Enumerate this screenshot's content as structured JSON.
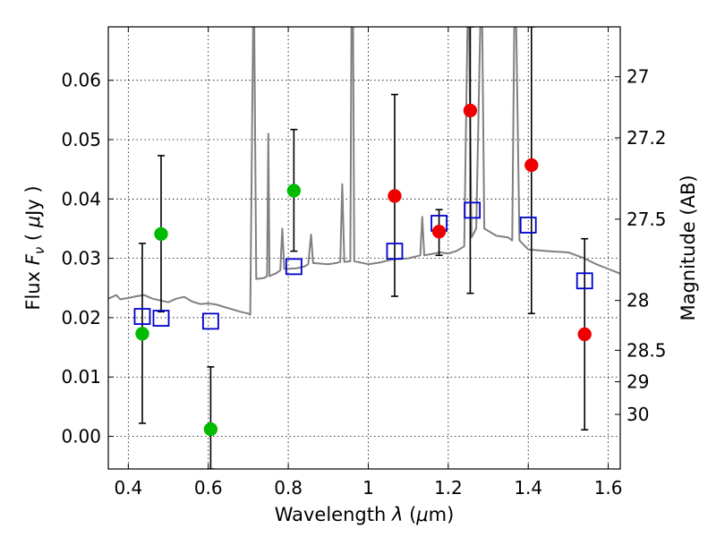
{
  "chart_data": {
    "type": "scatter",
    "title": "",
    "xlabel_prefix": "Wavelength ",
    "xlabel_symbol": "λ",
    "xlabel_unit_open": " (",
    "xlabel_unit_mu": "μ",
    "xlabel_unit_close": "m)",
    "ylabel_prefix": "Flux ",
    "ylabel_symbol": "F",
    "ylabel_sub": "ν",
    "ylabel_unit_open": " ( ",
    "ylabel_unit_mu": "μ",
    "ylabel_unit_close": "Jy )",
    "y2label": "Magnitude (AB)",
    "xlim": [
      0.35,
      1.63
    ],
    "ylim": [
      -0.0055,
      0.069
    ],
    "grid": true,
    "xticks": [
      {
        "v": 0.4,
        "label": "0.4"
      },
      {
        "v": 0.6,
        "label": "0.6"
      },
      {
        "v": 0.8,
        "label": "0.8"
      },
      {
        "v": 1.0,
        "label": "1"
      },
      {
        "v": 1.2,
        "label": "1.2"
      },
      {
        "v": 1.4,
        "label": "1.4"
      },
      {
        "v": 1.6,
        "label": "1.6"
      }
    ],
    "yticks": [
      {
        "v": 0.0,
        "label": "0.00"
      },
      {
        "v": 0.01,
        "label": "0.01"
      },
      {
        "v": 0.02,
        "label": "0.02"
      },
      {
        "v": 0.03,
        "label": "0.03"
      },
      {
        "v": 0.04,
        "label": "0.04"
      },
      {
        "v": 0.05,
        "label": "0.05"
      },
      {
        "v": 0.06,
        "label": "0.06"
      }
    ],
    "y2ticks": [
      {
        "flux": 0.0606,
        "label": "27"
      },
      {
        "flux": 0.0503,
        "label": "27.2"
      },
      {
        "flux": 0.0366,
        "label": "27.5"
      },
      {
        "flux": 0.0229,
        "label": "28"
      },
      {
        "flux": 0.0145,
        "label": "28.5"
      },
      {
        "flux": 0.0092,
        "label": "29"
      },
      {
        "flux": 0.0037,
        "label": "30"
      }
    ],
    "colors": {
      "green": "#00bb00",
      "red": "#ee0000",
      "model": "#808080",
      "box": "#0000cc",
      "error": "#000000"
    },
    "series": [
      {
        "name": "green points",
        "color": "#00bb00",
        "points": [
          {
            "x": 0.435,
            "y": 0.0173,
            "lo": 0.0022,
            "hi": 0.0325
          },
          {
            "x": 0.482,
            "y": 0.0341,
            "lo": 0.021,
            "hi": 0.0473
          },
          {
            "x": 0.606,
            "y": 0.0012,
            "lo": -0.0055,
            "hi": 0.0117
          },
          {
            "x": 0.814,
            "y": 0.0414,
            "lo": 0.0312,
            "hi": 0.0517
          }
        ]
      },
      {
        "name": "red points",
        "color": "#ee0000",
        "points": [
          {
            "x": 1.066,
            "y": 0.0405,
            "lo": 0.0236,
            "hi": 0.0576
          },
          {
            "x": 1.177,
            "y": 0.0345,
            "lo": 0.0305,
            "hi": 0.0382
          },
          {
            "x": 1.255,
            "y": 0.0549,
            "lo": 0.0241,
            "hi": 0.069
          },
          {
            "x": 1.408,
            "y": 0.0457,
            "lo": 0.0207,
            "hi": 0.069
          },
          {
            "x": 1.541,
            "y": 0.0172,
            "lo": 0.0011,
            "hi": 0.0333
          }
        ]
      },
      {
        "name": "model photometry",
        "color": "#0000cc",
        "marker": "open-square",
        "points": [
          {
            "x": 0.435,
            "y": 0.0202
          },
          {
            "x": 0.482,
            "y": 0.0199
          },
          {
            "x": 0.606,
            "y": 0.0194
          },
          {
            "x": 0.814,
            "y": 0.0286
          },
          {
            "x": 1.066,
            "y": 0.0312
          },
          {
            "x": 1.177,
            "y": 0.0359
          },
          {
            "x": 1.26,
            "y": 0.0381
          },
          {
            "x": 1.4,
            "y": 0.0356
          },
          {
            "x": 1.541,
            "y": 0.0262
          }
        ]
      },
      {
        "name": "model spectrum",
        "color": "#808080",
        "type": "line",
        "points": [
          [
            0.35,
            0.0232
          ],
          [
            0.36,
            0.0235
          ],
          [
            0.37,
            0.0238
          ],
          [
            0.38,
            0.0231
          ],
          [
            0.4,
            0.0233
          ],
          [
            0.42,
            0.0236
          ],
          [
            0.44,
            0.0238
          ],
          [
            0.46,
            0.0232
          ],
          [
            0.48,
            0.0229
          ],
          [
            0.5,
            0.0226
          ],
          [
            0.52,
            0.0232
          ],
          [
            0.54,
            0.0235
          ],
          [
            0.56,
            0.0227
          ],
          [
            0.58,
            0.0223
          ],
          [
            0.6,
            0.0224
          ],
          [
            0.62,
            0.0222
          ],
          [
            0.64,
            0.0218
          ],
          [
            0.66,
            0.0214
          ],
          [
            0.68,
            0.021
          ],
          [
            0.7,
            0.0207
          ],
          [
            0.705,
            0.0205
          ],
          [
            0.712,
            0.069
          ],
          [
            0.715,
            0.069
          ],
          [
            0.72,
            0.0265
          ],
          [
            0.74,
            0.0267
          ],
          [
            0.747,
            0.027
          ],
          [
            0.75,
            0.051
          ],
          [
            0.753,
            0.027
          ],
          [
            0.77,
            0.0275
          ],
          [
            0.78,
            0.028
          ],
          [
            0.785,
            0.035
          ],
          [
            0.79,
            0.0282
          ],
          [
            0.82,
            0.0283
          ],
          [
            0.84,
            0.0286
          ],
          [
            0.85,
            0.029
          ],
          [
            0.857,
            0.034
          ],
          [
            0.862,
            0.0292
          ],
          [
            0.9,
            0.029
          ],
          [
            0.92,
            0.0292
          ],
          [
            0.93,
            0.0294
          ],
          [
            0.935,
            0.0425
          ],
          [
            0.94,
            0.0294
          ],
          [
            0.955,
            0.0295
          ],
          [
            0.958,
            0.069
          ],
          [
            0.962,
            0.069
          ],
          [
            0.965,
            0.0295
          ],
          [
            1.0,
            0.029
          ],
          [
            1.03,
            0.0293
          ],
          [
            1.06,
            0.0298
          ],
          [
            1.1,
            0.03
          ],
          [
            1.13,
            0.0305
          ],
          [
            1.135,
            0.037
          ],
          [
            1.14,
            0.0305
          ],
          [
            1.18,
            0.031
          ],
          [
            1.2,
            0.0308
          ],
          [
            1.22,
            0.0312
          ],
          [
            1.24,
            0.032
          ],
          [
            1.248,
            0.069
          ],
          [
            1.252,
            0.069
          ],
          [
            1.258,
            0.0335
          ],
          [
            1.27,
            0.035
          ],
          [
            1.28,
            0.069
          ],
          [
            1.285,
            0.069
          ],
          [
            1.29,
            0.035
          ],
          [
            1.32,
            0.0338
          ],
          [
            1.35,
            0.0335
          ],
          [
            1.36,
            0.033
          ],
          [
            1.365,
            0.069
          ],
          [
            1.37,
            0.069
          ],
          [
            1.378,
            0.033
          ],
          [
            1.4,
            0.0315
          ],
          [
            1.45,
            0.0312
          ],
          [
            1.5,
            0.031
          ],
          [
            1.54,
            0.03
          ],
          [
            1.57,
            0.029
          ],
          [
            1.6,
            0.0282
          ],
          [
            1.62,
            0.0277
          ],
          [
            1.63,
            0.0274
          ]
        ]
      }
    ]
  }
}
